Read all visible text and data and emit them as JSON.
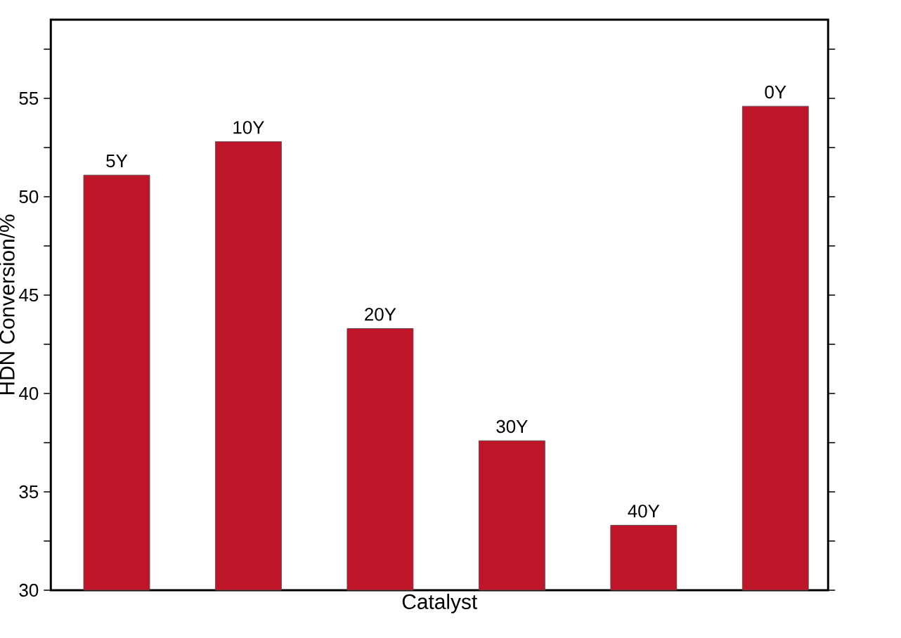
{
  "chart_data": {
    "type": "bar",
    "xlabel": "Catalyst",
    "ylabel": "HDN Conversion/%",
    "categories": [
      "5Y",
      "10Y",
      "20Y",
      "30Y",
      "40Y",
      "0Y"
    ],
    "values": [
      51.1,
      52.8,
      43.3,
      37.6,
      33.3,
      54.6
    ],
    "color": "#be1628",
    "ylim": [
      30,
      59
    ],
    "yticks": [
      30,
      {
        "value": 32.5,
        "label": null
      },
      35,
      {
        "value": 37.5,
        "label": null
      },
      40,
      {
        "value": 42.5,
        "label": null
      },
      45,
      {
        "value": 47.5,
        "label": null
      },
      50,
      {
        "value": 52.5,
        "label": null
      },
      55,
      {
        "value": 57.5,
        "label": null
      }
    ]
  }
}
